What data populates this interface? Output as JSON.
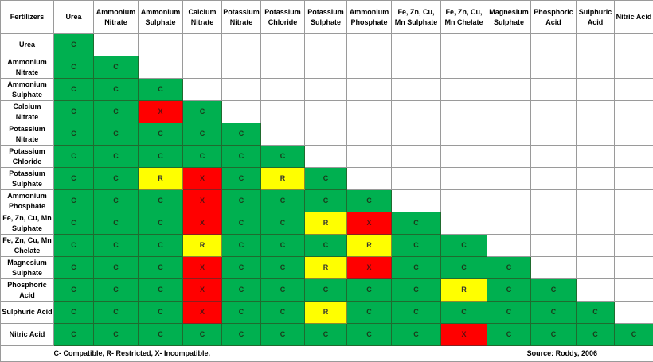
{
  "table": {
    "corner": "Fertilizers",
    "columns": [
      "Urea",
      "Ammonium Nitrate",
      "Ammonium Sulphate",
      "Calcium Nitrate",
      "Potassium Nitrate",
      "Potassium Chloride",
      "Potassium Sulphate",
      "Ammonium Phosphate",
      "Fe, Zn, Cu, Mn Sulphate",
      "Fe, Zn, Cu, Mn Chelate",
      "Magnesium Sulphate",
      "Phosphoric Acid",
      "Sulphuric Acid",
      "Nitric Acid"
    ],
    "rows": [
      {
        "label": "Urea",
        "cells": [
          "C"
        ]
      },
      {
        "label": "Ammonium Nitrate",
        "cells": [
          "C",
          "C"
        ]
      },
      {
        "label": "Ammonium Sulphate",
        "cells": [
          "C",
          "C",
          "C"
        ]
      },
      {
        "label": "Calcium Nitrate",
        "cells": [
          "C",
          "C",
          "X",
          "C"
        ]
      },
      {
        "label": "Potassium Nitrate",
        "cells": [
          "C",
          "C",
          "C",
          "C",
          "C"
        ]
      },
      {
        "label": "Potassium Chloride",
        "cells": [
          "C",
          "C",
          "C",
          "C",
          "C",
          "C"
        ]
      },
      {
        "label": "Potassium Sulphate",
        "cells": [
          "C",
          "C",
          "R",
          "X",
          "C",
          "R",
          "C"
        ]
      },
      {
        "label": "Ammonium Phosphate",
        "cells": [
          "C",
          "C",
          "C",
          "X",
          "C",
          "C",
          "C",
          "C"
        ]
      },
      {
        "label": "Fe, Zn, Cu, Mn Sulphate",
        "cells": [
          "C",
          "C",
          "C",
          "X",
          "C",
          "C",
          "R",
          "X",
          "C"
        ]
      },
      {
        "label": "Fe, Zn, Cu, Mn Chelate",
        "cells": [
          "C",
          "C",
          "C",
          "R",
          "C",
          "C",
          "C",
          "R",
          "C",
          "C"
        ]
      },
      {
        "label": "Magnesium Sulphate",
        "cells": [
          "C",
          "C",
          "C",
          "X",
          "C",
          "C",
          "R",
          "X",
          "C",
          "C",
          "C"
        ]
      },
      {
        "label": "Phosphoric Acid",
        "cells": [
          "C",
          "C",
          "C",
          "X",
          "C",
          "C",
          "C",
          "C",
          "C",
          "R",
          "C",
          "C"
        ]
      },
      {
        "label": "Sulphuric Acid",
        "cells": [
          "C",
          "C",
          "C",
          "X",
          "C",
          "C",
          "R",
          "C",
          "C",
          "C",
          "C",
          "C",
          "C"
        ]
      },
      {
        "label": "Nitric Acid",
        "cells": [
          "C",
          "C",
          "C",
          "C",
          "C",
          "C",
          "C",
          "C",
          "C",
          "X",
          "C",
          "C",
          "C",
          "C"
        ]
      }
    ]
  },
  "legend": "C- Compatible, R- Restricted, X- Incompatible,",
  "source": "Source: Roddy, 2006",
  "colors": {
    "C": "#00b050",
    "R": "#ffff00",
    "X": "#ff0000"
  }
}
